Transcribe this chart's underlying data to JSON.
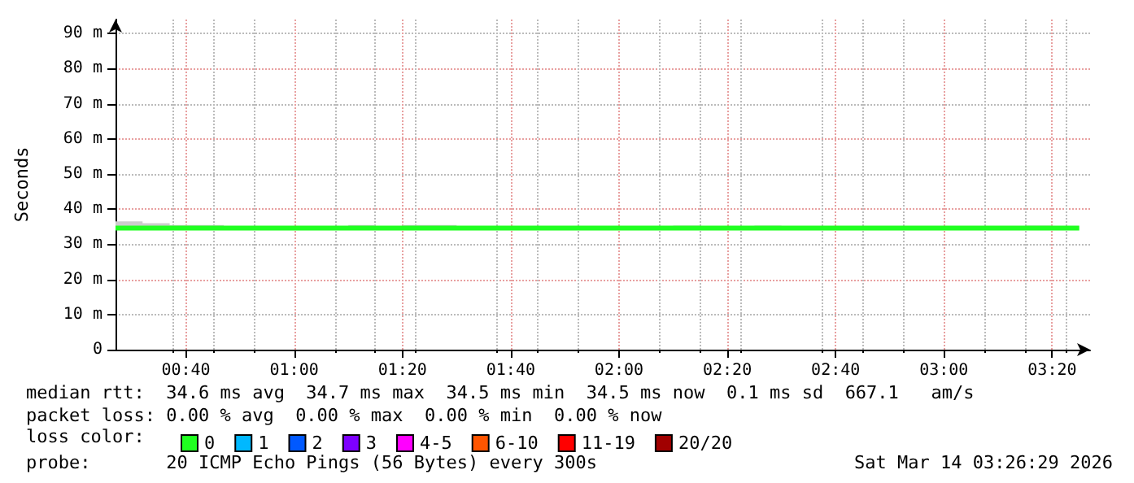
{
  "chart_data": {
    "type": "step",
    "ylabel": "Seconds",
    "x": [
      0.45,
      0.5333,
      0.6167,
      0.7833,
      1.1667,
      1.25,
      1.3333,
      1.5,
      2.1667,
      2.25,
      2.4167,
      2.5,
      3.25,
      3.3333,
      3.4167
    ],
    "xlim": [
      0.45,
      3.45
    ],
    "xticks": [
      {
        "value": 0.6667,
        "label": "00:40"
      },
      {
        "value": 1.0,
        "label": "01:00"
      },
      {
        "value": 1.3333,
        "label": "01:20"
      },
      {
        "value": 1.6667,
        "label": "01:40"
      },
      {
        "value": 2.0,
        "label": "02:00"
      },
      {
        "value": 2.3333,
        "label": "02:20"
      },
      {
        "value": 2.6667,
        "label": "02:40"
      },
      {
        "value": 3.0,
        "label": "03:00"
      },
      {
        "value": 3.3333,
        "label": "03:20"
      }
    ],
    "ylim": [
      0,
      94
    ],
    "yticks": [
      {
        "value": 0,
        "label": "0"
      },
      {
        "value": 10,
        "label": "10 m"
      },
      {
        "value": 20,
        "label": "20 m"
      },
      {
        "value": 30,
        "label": "30 m"
      },
      {
        "value": 40,
        "label": "40 m"
      },
      {
        "value": 50,
        "label": "50 m"
      },
      {
        "value": 60,
        "label": "60 m"
      },
      {
        "value": 70,
        "label": "70 m"
      },
      {
        "value": 80,
        "label": "80 m"
      },
      {
        "value": 90,
        "label": "90 m"
      }
    ],
    "series": [
      {
        "name": "0",
        "color": "#20ff20",
        "values": [
          34.6,
          34.6,
          34.6,
          34.6,
          34.6,
          34.6,
          34.6,
          34.6,
          34.6,
          34.6,
          34.6,
          34.6,
          34.6,
          34.6,
          34.6
        ],
        "lower": [
          34.6,
          34.6,
          34.6,
          34.6,
          34.6,
          34.6,
          34.6,
          34.6,
          34.6,
          34.6,
          34.6,
          34.6,
          34.6,
          34.6,
          34.6
        ],
        "upper": [
          36.5,
          36,
          35.5,
          34.8,
          35.5,
          34.8,
          35.5,
          34.8,
          35.3,
          34.8,
          35.3,
          34.8,
          35.3,
          34.8,
          34.8
        ]
      },
      {
        "name": "1",
        "color": "#00b8ff",
        "values": [
          null,
          null,
          null,
          null,
          null,
          null,
          null,
          null,
          null,
          null,
          null,
          null,
          null,
          null,
          null
        ]
      },
      {
        "name": "2",
        "color": "#0059ff",
        "values": [
          null,
          null,
          null,
          null,
          null,
          null,
          null,
          null,
          null,
          null,
          null,
          null,
          null,
          null,
          null
        ]
      },
      {
        "name": "3",
        "color": "#7e00ff",
        "values": [
          null,
          null,
          null,
          null,
          null,
          null,
          null,
          null,
          null,
          null,
          null,
          null,
          null,
          null,
          null
        ]
      },
      {
        "name": "4-5",
        "color": "#ff00ff",
        "values": [
          null,
          null,
          null,
          null,
          null,
          null,
          null,
          null,
          null,
          null,
          null,
          null,
          null,
          null,
          null
        ]
      },
      {
        "name": "6-10",
        "color": "#ff5500",
        "values": [
          null,
          null,
          null,
          null,
          null,
          null,
          null,
          null,
          null,
          null,
          null,
          null,
          null,
          null,
          null
        ]
      },
      {
        "name": "11-19",
        "color": "#ff0000",
        "values": [
          null,
          null,
          null,
          null,
          null,
          null,
          null,
          null,
          null,
          null,
          null,
          null,
          null,
          null,
          null
        ]
      },
      {
        "name": "20/20",
        "color": "#a10000",
        "values": [
          null,
          null,
          null,
          null,
          null,
          null,
          null,
          null,
          null,
          null,
          null,
          null,
          null,
          null,
          null
        ]
      }
    ],
    "legend": "bottom",
    "legend_title": "loss color:",
    "grid": true,
    "marker": "none",
    "line_style": "solid",
    "annotations": [
      "median rtt:  34.6 ms avg  34.7 ms max  34.5 ms min  34.5 ms now  0.1 ms sd  667.1   am/s",
      "packet loss: 0.00 % avg  0.00 % max  0.00 % min  0.00 % now",
      "probe:       20 ICMP Echo Pings (56 Bytes) every 300s",
      "Sat Mar 14 03:26:29 2026"
    ]
  }
}
